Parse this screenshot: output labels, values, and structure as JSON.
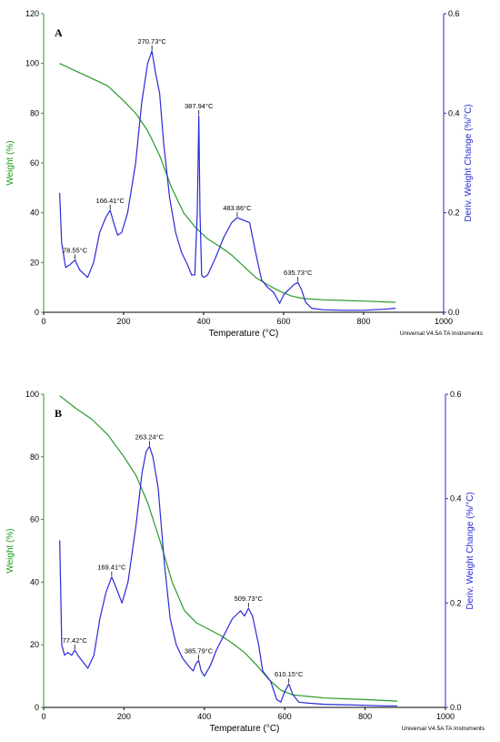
{
  "colors": {
    "weight": "#2a9a2a",
    "deriv": "#2a2ad6",
    "axis": "#000000",
    "left_axis": "#2a9a2a",
    "right_axis": "#2a2ad6"
  },
  "chart_data": [
    {
      "type": "line",
      "panel_label": "A",
      "xlabel": "Temperature (°C)",
      "ylabel_left": "Weight (%)",
      "ylabel_right": "Deriv. Weight Change (%/°C)",
      "xlim": [
        0,
        1000
      ],
      "ylim_left": [
        0,
        120
      ],
      "ylim_right": [
        0,
        0.6
      ],
      "xticks": [
        "0",
        "200",
        "400",
        "600",
        "800",
        "1000"
      ],
      "yticks_left": [
        "0",
        "20",
        "40",
        "60",
        "80",
        "100",
        "120"
      ],
      "yticks_right": [
        "0.0",
        "0.2",
        "0.4",
        "0.6"
      ],
      "footer": "Universal V4.5A TA Instruments",
      "annotations": [
        {
          "text": "78.55°C",
          "x": 78.55,
          "y": 0.105
        },
        {
          "text": "166.41°C",
          "x": 166.41,
          "y": 0.205
        },
        {
          "text": "270.73°C",
          "x": 270.73,
          "y": 0.525
        },
        {
          "text": "387.94°C",
          "x": 387.94,
          "y": 0.395
        },
        {
          "text": "483.86°C",
          "x": 483.86,
          "y": 0.19
        },
        {
          "text": "635.73°C",
          "x": 635.73,
          "y": 0.06
        }
      ],
      "series": [
        {
          "axis": "left",
          "x": [
            40,
            80,
            120,
            160,
            200,
            230,
            260,
            290,
            320,
            350,
            380,
            410,
            440,
            470,
            500,
            530,
            560,
            590,
            620,
            650,
            700,
            800,
            880
          ],
          "y": [
            100,
            97,
            94,
            91,
            85,
            80,
            73,
            63,
            50,
            40,
            34,
            29.5,
            26.5,
            23,
            18.5,
            14,
            11,
            8.5,
            6.5,
            5.5,
            5,
            4.5,
            4
          ]
        },
        {
          "axis": "right",
          "x": [
            40,
            45,
            55,
            65,
            78.55,
            90,
            110,
            125,
            140,
            155,
            166.41,
            175,
            185,
            195,
            210,
            230,
            245,
            260,
            270.73,
            280,
            290,
            300,
            315,
            330,
            345,
            360,
            370,
            378,
            384,
            387.94,
            391,
            395,
            400,
            410,
            430,
            450,
            470,
            483.86,
            500,
            515,
            530,
            545,
            560,
            575,
            590,
            600,
            612,
            625,
            635.73,
            645,
            655,
            670,
            700,
            750,
            800,
            850,
            880
          ],
          "y": [
            0.24,
            0.14,
            0.09,
            0.095,
            0.105,
            0.085,
            0.07,
            0.1,
            0.16,
            0.19,
            0.205,
            0.18,
            0.155,
            0.16,
            0.2,
            0.3,
            0.42,
            0.5,
            0.525,
            0.48,
            0.44,
            0.34,
            0.23,
            0.16,
            0.12,
            0.095,
            0.075,
            0.075,
            0.2,
            0.395,
            0.2,
            0.075,
            0.07,
            0.075,
            0.11,
            0.15,
            0.18,
            0.19,
            0.185,
            0.18,
            0.12,
            0.065,
            0.05,
            0.04,
            0.018,
            0.035,
            0.045,
            0.055,
            0.06,
            0.045,
            0.02,
            0.008,
            0.005,
            0.004,
            0.004,
            0.006,
            0.008
          ]
        }
      ]
    },
    {
      "type": "line",
      "panel_label": "B",
      "xlabel": "Temperature (°C)",
      "ylabel_left": "Weight (%)",
      "ylabel_right": "Deriv. Weight Change (%/°C)",
      "xlim": [
        0,
        1000
      ],
      "ylim_left": [
        0,
        100
      ],
      "ylim_right": [
        0,
        0.6
      ],
      "xticks": [
        "0",
        "200",
        "400",
        "600",
        "800",
        "1000"
      ],
      "yticks_left": [
        "0",
        "20",
        "40",
        "60",
        "80",
        "100"
      ],
      "yticks_right": [
        "0.0",
        "0.2",
        "0.4",
        "0.6"
      ],
      "footer": "Universal V4.5A TA Instruments",
      "annotations": [
        {
          "text": "77.42°C",
          "x": 77.42,
          "y": 0.11
        },
        {
          "text": "169.41°C",
          "x": 169.41,
          "y": 0.25
        },
        {
          "text": "263.24°C",
          "x": 263.24,
          "y": 0.5
        },
        {
          "text": "385.79°C",
          "x": 385.79,
          "y": 0.09
        },
        {
          "text": "509.73°C",
          "x": 509.73,
          "y": 0.19
        },
        {
          "text": "610.15°C",
          "x": 610.15,
          "y": 0.045
        }
      ],
      "series": [
        {
          "axis": "left",
          "x": [
            40,
            80,
            120,
            160,
            200,
            230,
            260,
            290,
            320,
            350,
            380,
            410,
            440,
            470,
            500,
            530,
            560,
            590,
            620,
            660,
            700,
            800,
            880
          ],
          "y": [
            99.5,
            95.5,
            92,
            87,
            80,
            74,
            65,
            53,
            40,
            31,
            27,
            25,
            23,
            20.5,
            17.5,
            13.5,
            9,
            5.5,
            4,
            3.5,
            3,
            2.5,
            2
          ]
        },
        {
          "axis": "right",
          "x": [
            40,
            45,
            52,
            60,
            70,
            77.42,
            85,
            100,
            110,
            125,
            140,
            155,
            169.41,
            180,
            195,
            210,
            230,
            245,
            255,
            263.24,
            272,
            285,
            300,
            315,
            330,
            345,
            360,
            372,
            380,
            385.79,
            392,
            400,
            415,
            430,
            450,
            470,
            490,
            500,
            509.73,
            520,
            535,
            545,
            555,
            565,
            580,
            590,
            600,
            610.15,
            620,
            635,
            660,
            700,
            750,
            800,
            850,
            880
          ],
          "y": [
            0.32,
            0.12,
            0.1,
            0.105,
            0.1,
            0.11,
            0.1,
            0.085,
            0.075,
            0.1,
            0.17,
            0.22,
            0.25,
            0.23,
            0.2,
            0.24,
            0.35,
            0.45,
            0.49,
            0.5,
            0.48,
            0.42,
            0.28,
            0.17,
            0.12,
            0.095,
            0.08,
            0.07,
            0.085,
            0.09,
            0.07,
            0.06,
            0.08,
            0.11,
            0.14,
            0.17,
            0.185,
            0.175,
            0.19,
            0.175,
            0.12,
            0.07,
            0.06,
            0.05,
            0.015,
            0.01,
            0.03,
            0.045,
            0.025,
            0.01,
            0.008,
            0.006,
            0.005,
            0.004,
            0.003,
            0.003
          ]
        }
      ]
    }
  ]
}
